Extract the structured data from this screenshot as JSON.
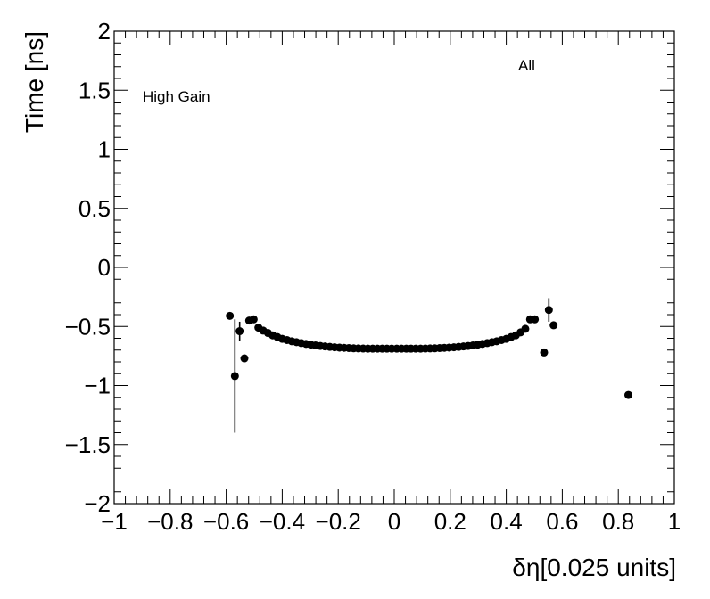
{
  "chart_data": {
    "type": "scatter",
    "title": "",
    "xlabel": "δη[0.025 units]",
    "ylabel": "Time [ns]",
    "xlim": [
      -1,
      1
    ],
    "ylim": [
      -2,
      2
    ],
    "x_ticks": [
      -1,
      -0.8,
      -0.6,
      -0.4,
      -0.2,
      0,
      0.2,
      0.4,
      0.6,
      0.8,
      1
    ],
    "x_tick_labels": [
      "−1",
      "−0.8",
      "−0.6",
      "−0.4",
      "−0.2",
      "0",
      "0.2",
      "0.4",
      "0.6",
      "0.8",
      "1"
    ],
    "y_ticks": [
      -2,
      -1.5,
      -1,
      -0.5,
      0,
      0.5,
      1,
      1.5,
      2
    ],
    "y_tick_labels": [
      "−2",
      "−1.5",
      "−1",
      "−0.5",
      "0",
      "0.5",
      "1",
      "1.5",
      "2"
    ],
    "annotations": [
      "High Gain",
      "All"
    ],
    "grid": false,
    "series": [
      {
        "marker_color": "#000000",
        "points": [
          {
            "x": -0.587,
            "y": -0.41,
            "err": 0
          },
          {
            "x": -0.569,
            "y": -0.92,
            "err": 0.48
          },
          {
            "x": -0.552,
            "y": -0.54,
            "err": 0.08
          },
          {
            "x": -0.535,
            "y": -0.77,
            "err": 0
          },
          {
            "x": -0.518,
            "y": -0.45,
            "err": 0
          },
          {
            "x": -0.502,
            "y": -0.44,
            "err": 0
          },
          {
            "x": -0.485,
            "y": -0.51,
            "err": 0
          },
          {
            "x": -0.468,
            "y": -0.535,
            "err": 0
          },
          {
            "x": -0.451,
            "y": -0.555,
            "err": 0
          },
          {
            "x": -0.434,
            "y": -0.575,
            "err": 0
          },
          {
            "x": -0.417,
            "y": -0.59,
            "err": 0
          },
          {
            "x": -0.4,
            "y": -0.605,
            "err": 0
          },
          {
            "x": -0.383,
            "y": -0.615,
            "err": 0
          },
          {
            "x": -0.366,
            "y": -0.625,
            "err": 0
          },
          {
            "x": -0.349,
            "y": -0.633,
            "err": 0
          },
          {
            "x": -0.332,
            "y": -0.641,
            "err": 0
          },
          {
            "x": -0.315,
            "y": -0.648,
            "err": 0
          },
          {
            "x": -0.298,
            "y": -0.654,
            "err": 0
          },
          {
            "x": -0.281,
            "y": -0.66,
            "err": 0
          },
          {
            "x": -0.264,
            "y": -0.665,
            "err": 0
          },
          {
            "x": -0.247,
            "y": -0.669,
            "err": 0
          },
          {
            "x": -0.23,
            "y": -0.673,
            "err": 0
          },
          {
            "x": -0.213,
            "y": -0.676,
            "err": 0
          },
          {
            "x": -0.196,
            "y": -0.679,
            "err": 0
          },
          {
            "x": -0.179,
            "y": -0.681,
            "err": 0
          },
          {
            "x": -0.162,
            "y": -0.683,
            "err": 0
          },
          {
            "x": -0.145,
            "y": -0.685,
            "err": 0
          },
          {
            "x": -0.128,
            "y": -0.686,
            "err": 0
          },
          {
            "x": -0.111,
            "y": -0.687,
            "err": 0
          },
          {
            "x": -0.094,
            "y": -0.688,
            "err": 0
          },
          {
            "x": -0.077,
            "y": -0.688,
            "err": 0
          },
          {
            "x": -0.06,
            "y": -0.688,
            "err": 0
          },
          {
            "x": -0.043,
            "y": -0.688,
            "err": 0
          },
          {
            "x": -0.026,
            "y": -0.688,
            "err": 0
          },
          {
            "x": -0.009,
            "y": -0.688,
            "err": 0
          },
          {
            "x": 0.009,
            "y": -0.688,
            "err": 0
          },
          {
            "x": 0.026,
            "y": -0.688,
            "err": 0
          },
          {
            "x": 0.043,
            "y": -0.688,
            "err": 0
          },
          {
            "x": 0.06,
            "y": -0.688,
            "err": 0
          },
          {
            "x": 0.077,
            "y": -0.688,
            "err": 0
          },
          {
            "x": 0.094,
            "y": -0.688,
            "err": 0
          },
          {
            "x": 0.111,
            "y": -0.687,
            "err": 0
          },
          {
            "x": 0.128,
            "y": -0.686,
            "err": 0
          },
          {
            "x": 0.145,
            "y": -0.685,
            "err": 0
          },
          {
            "x": 0.162,
            "y": -0.683,
            "err": 0
          },
          {
            "x": 0.179,
            "y": -0.681,
            "err": 0
          },
          {
            "x": 0.196,
            "y": -0.679,
            "err": 0
          },
          {
            "x": 0.213,
            "y": -0.676,
            "err": 0
          },
          {
            "x": 0.23,
            "y": -0.673,
            "err": 0
          },
          {
            "x": 0.247,
            "y": -0.669,
            "err": 0
          },
          {
            "x": 0.264,
            "y": -0.665,
            "err": 0
          },
          {
            "x": 0.281,
            "y": -0.66,
            "err": 0
          },
          {
            "x": 0.298,
            "y": -0.654,
            "err": 0
          },
          {
            "x": 0.315,
            "y": -0.648,
            "err": 0
          },
          {
            "x": 0.332,
            "y": -0.641,
            "err": 0
          },
          {
            "x": 0.349,
            "y": -0.633,
            "err": 0
          },
          {
            "x": 0.366,
            "y": -0.625,
            "err": 0
          },
          {
            "x": 0.383,
            "y": -0.615,
            "err": 0
          },
          {
            "x": 0.4,
            "y": -0.605,
            "err": 0
          },
          {
            "x": 0.417,
            "y": -0.59,
            "err": 0
          },
          {
            "x": 0.434,
            "y": -0.575,
            "err": 0
          },
          {
            "x": 0.451,
            "y": -0.55,
            "err": 0
          },
          {
            "x": 0.468,
            "y": -0.52,
            "err": 0
          },
          {
            "x": 0.485,
            "y": -0.44,
            "err": 0
          },
          {
            "x": 0.502,
            "y": -0.44,
            "err": 0
          },
          {
            "x": 0.535,
            "y": -0.72,
            "err": 0
          },
          {
            "x": 0.552,
            "y": -0.36,
            "err": 0.1
          },
          {
            "x": 0.569,
            "y": -0.49,
            "err": 0
          },
          {
            "x": 0.836,
            "y": -1.08,
            "err": 0
          }
        ]
      }
    ]
  }
}
